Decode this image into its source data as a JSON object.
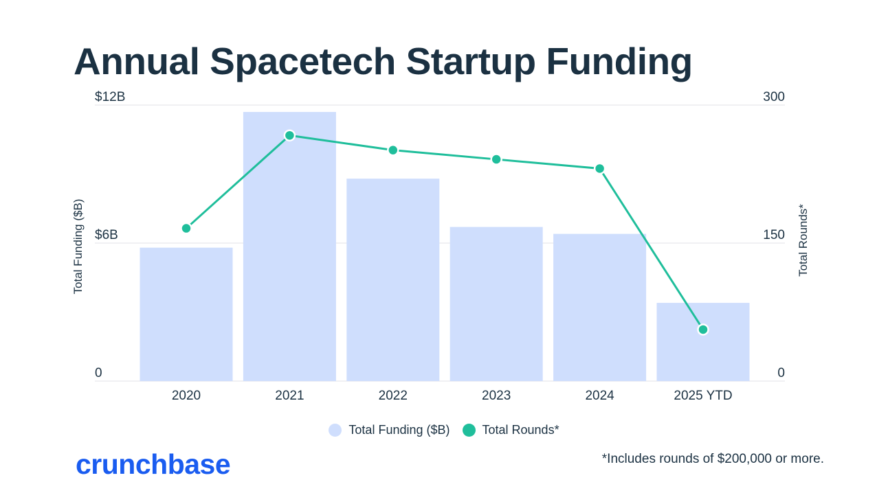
{
  "title": "Annual Spacetech Startup Funding",
  "footnote": "*Includes rounds of $200,000 or more.",
  "brand": {
    "name": "crunchbase",
    "color": "#1a5cf0"
  },
  "colors": {
    "bars": "#cfdefd",
    "line": "#1fbe9b",
    "text": "#1b3142",
    "grid": "#e6e8ec"
  },
  "legend": {
    "items": [
      {
        "label": "Total Funding ($B)",
        "color": "#cfdefd"
      },
      {
        "label": "Total Rounds*",
        "color": "#1fbe9b"
      }
    ]
  },
  "chart_data": {
    "type": "bar",
    "title": "Annual Spacetech Startup Funding",
    "categories": [
      "2020",
      "2021",
      "2022",
      "2023",
      "2024",
      "2025 YTD"
    ],
    "series": [
      {
        "name": "Total Funding ($B)",
        "type": "bar",
        "axis": "left",
        "values": [
          5.8,
          11.7,
          8.8,
          6.7,
          6.4,
          3.4
        ]
      },
      {
        "name": "Total Rounds*",
        "type": "line",
        "axis": "right",
        "values": [
          166,
          267,
          251,
          241,
          231,
          56
        ]
      }
    ],
    "y_left": {
      "label": "Total Funding ($B)",
      "ticks": [
        "0",
        "$6B",
        "$12B"
      ],
      "tick_values": [
        0,
        6,
        12
      ],
      "range": [
        0,
        12
      ]
    },
    "y_right": {
      "label": "Total Rounds*",
      "ticks": [
        "0",
        "150",
        "300"
      ],
      "tick_values": [
        0,
        150,
        300
      ],
      "range": [
        0,
        300
      ]
    },
    "grid": true,
    "legend_position": "bottom-center"
  }
}
